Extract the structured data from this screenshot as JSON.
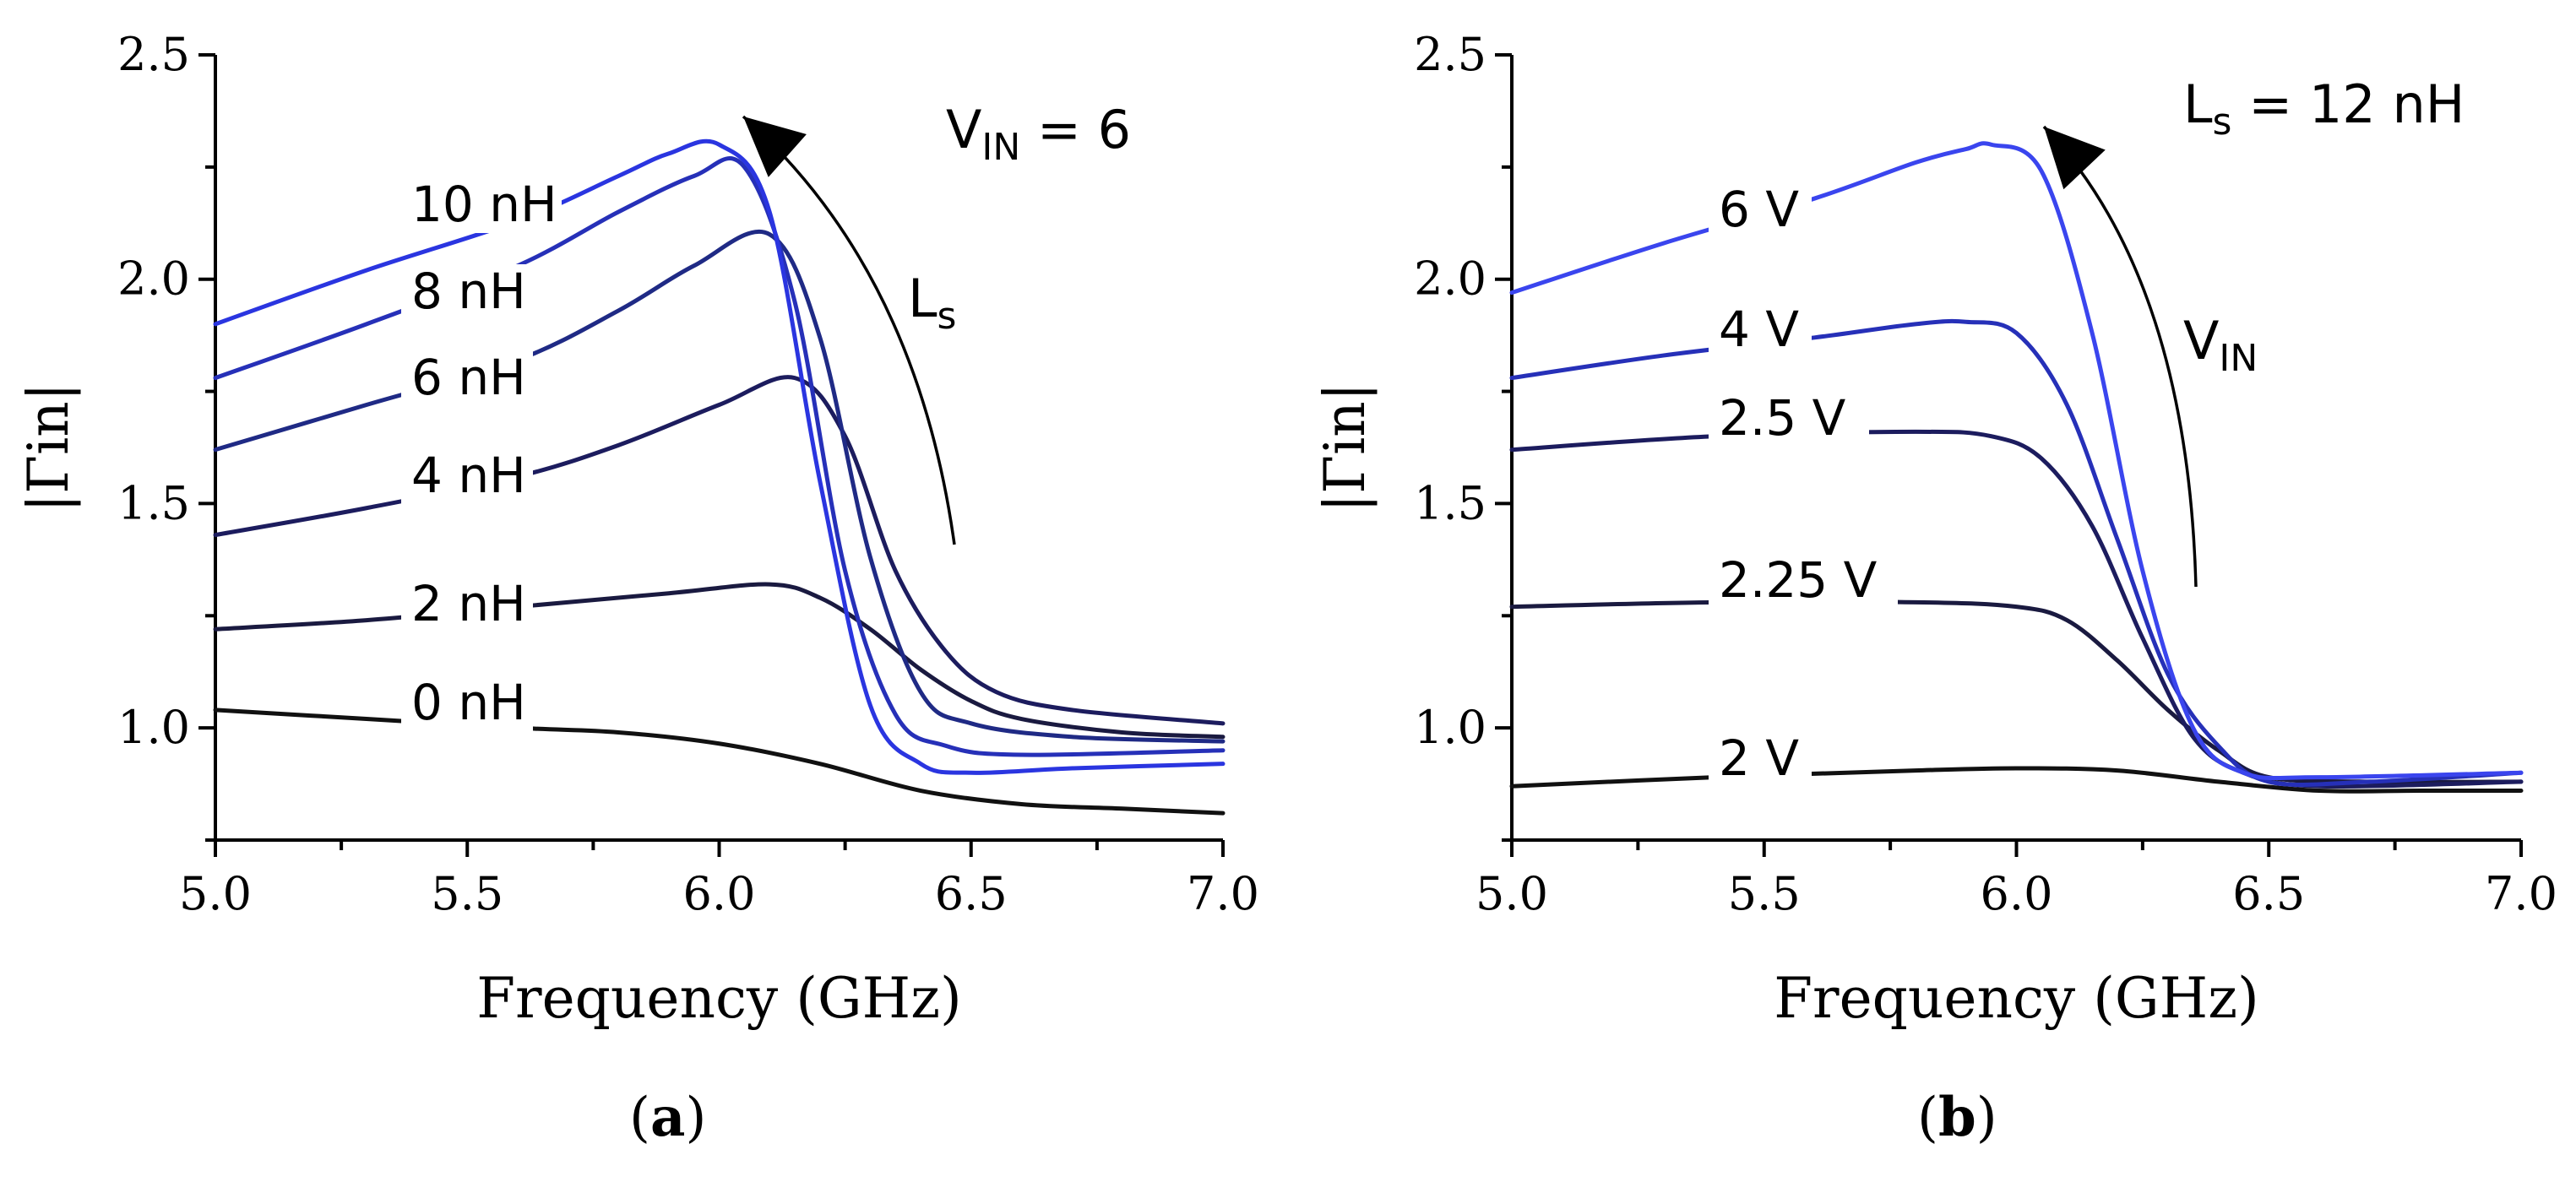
{
  "chart_data": [
    {
      "panel": "(a)",
      "type": "line",
      "xlabel": "Frequency (GHz)",
      "ylabel": "|Γin|",
      "xlim": [
        5.0,
        7.0
      ],
      "ylim": [
        0.75,
        2.5
      ],
      "xticks": [
        "5.0",
        "5.5",
        "6.0",
        "6.5",
        "7.0"
      ],
      "yticks": [
        "1.0",
        "1.5",
        "2.0",
        "2.5"
      ],
      "annotation": {
        "main": "V",
        "sub": "IN",
        "rest": " =  6"
      },
      "arrow_label": {
        "main": "L",
        "sub": "s"
      },
      "series": [
        {
          "name": "0 nH",
          "color": "#111111",
          "x": [
            5.0,
            5.3,
            5.6,
            5.8,
            6.0,
            6.2,
            6.4,
            6.6,
            6.8,
            7.0
          ],
          "y": [
            1.04,
            1.02,
            1.0,
            0.99,
            0.965,
            0.92,
            0.86,
            0.83,
            0.82,
            0.81
          ]
        },
        {
          "name": "2 nH",
          "color": "#1a1a40",
          "x": [
            5.0,
            5.3,
            5.6,
            5.9,
            6.1,
            6.2,
            6.3,
            6.4,
            6.5,
            6.6,
            6.8,
            7.0
          ],
          "y": [
            1.22,
            1.24,
            1.27,
            1.3,
            1.32,
            1.29,
            1.22,
            1.13,
            1.06,
            1.02,
            0.99,
            0.98
          ]
        },
        {
          "name": "4 nH",
          "color": "#1c1c5e",
          "x": [
            5.0,
            5.3,
            5.6,
            5.8,
            6.0,
            6.15,
            6.25,
            6.35,
            6.45,
            6.55,
            6.7,
            7.0
          ],
          "y": [
            1.43,
            1.49,
            1.56,
            1.63,
            1.72,
            1.78,
            1.65,
            1.35,
            1.17,
            1.08,
            1.04,
            1.01
          ]
        },
        {
          "name": "6 nH",
          "color": "#1f2a85",
          "x": [
            5.0,
            5.3,
            5.6,
            5.8,
            5.95,
            6.1,
            6.2,
            6.3,
            6.4,
            6.5,
            6.7,
            7.0
          ],
          "y": [
            1.62,
            1.72,
            1.82,
            1.93,
            2.03,
            2.1,
            1.87,
            1.38,
            1.08,
            1.01,
            0.98,
            0.97
          ]
        },
        {
          "name": "8 nH",
          "color": "#2630b8",
          "x": [
            5.0,
            5.3,
            5.6,
            5.8,
            5.95,
            6.05,
            6.15,
            6.25,
            6.35,
            6.45,
            6.6,
            7.0
          ],
          "y": [
            1.78,
            1.9,
            2.03,
            2.15,
            2.23,
            2.25,
            1.95,
            1.35,
            1.03,
            0.96,
            0.94,
            0.95
          ]
        },
        {
          "name": "10 nH",
          "color": "#2a35e0",
          "x": [
            5.0,
            5.3,
            5.6,
            5.8,
            5.9,
            6.0,
            6.1,
            6.2,
            6.3,
            6.4,
            6.5,
            6.7,
            7.0
          ],
          "y": [
            1.9,
            2.02,
            2.13,
            2.23,
            2.28,
            2.3,
            2.15,
            1.55,
            1.05,
            0.92,
            0.9,
            0.91,
            0.92
          ]
        }
      ]
    },
    {
      "panel": "(b)",
      "type": "line",
      "xlabel": "Frequency (GHz)",
      "ylabel": "|Γin|",
      "xlim": [
        5.0,
        7.0
      ],
      "ylim": [
        0.75,
        2.5
      ],
      "xticks": [
        "5.0",
        "5.5",
        "6.0",
        "6.5",
        "7.0"
      ],
      "yticks": [
        "1.0",
        "1.5",
        "2.0",
        "2.5"
      ],
      "annotation": {
        "main": "L",
        "sub": "s",
        "rest": " =  12 nH"
      },
      "arrow_label": {
        "main": "V",
        "sub": "IN"
      },
      "series": [
        {
          "name": "2 V",
          "color": "#111111",
          "x": [
            5.0,
            5.4,
            5.8,
            6.0,
            6.2,
            6.4,
            6.6,
            6.8,
            7.0
          ],
          "y": [
            0.87,
            0.89,
            0.905,
            0.91,
            0.905,
            0.88,
            0.86,
            0.86,
            0.86
          ]
        },
        {
          "name": "2.25 V",
          "color": "#1a1a40",
          "x": [
            5.0,
            5.4,
            5.8,
            6.0,
            6.1,
            6.2,
            6.3,
            6.4,
            6.5,
            6.7,
            7.0
          ],
          "y": [
            1.27,
            1.28,
            1.28,
            1.27,
            1.24,
            1.15,
            1.04,
            0.95,
            0.89,
            0.88,
            0.88
          ]
        },
        {
          "name": "2.5 V",
          "color": "#1c1c5e",
          "x": [
            5.0,
            5.4,
            5.8,
            5.95,
            6.05,
            6.15,
            6.25,
            6.35,
            6.45,
            6.6,
            7.0
          ],
          "y": [
            1.62,
            1.65,
            1.66,
            1.65,
            1.6,
            1.45,
            1.2,
            0.98,
            0.9,
            0.87,
            0.88
          ]
        },
        {
          "name": "4 V",
          "color": "#2630b8",
          "x": [
            5.0,
            5.3,
            5.6,
            5.8,
            5.9,
            6.0,
            6.1,
            6.2,
            6.3,
            6.4,
            6.5,
            6.7,
            7.0
          ],
          "y": [
            1.78,
            1.83,
            1.87,
            1.9,
            1.905,
            1.88,
            1.72,
            1.42,
            1.12,
            0.96,
            0.88,
            0.88,
            0.9
          ]
        },
        {
          "name": "6 V",
          "color": "#3a45ee",
          "x": [
            5.0,
            5.3,
            5.6,
            5.8,
            5.9,
            5.95,
            6.05,
            6.15,
            6.25,
            6.35,
            6.45,
            6.6,
            7.0
          ],
          "y": [
            1.97,
            2.08,
            2.18,
            2.26,
            2.29,
            2.3,
            2.24,
            1.88,
            1.35,
            1.0,
            0.9,
            0.89,
            0.9
          ]
        }
      ]
    }
  ]
}
